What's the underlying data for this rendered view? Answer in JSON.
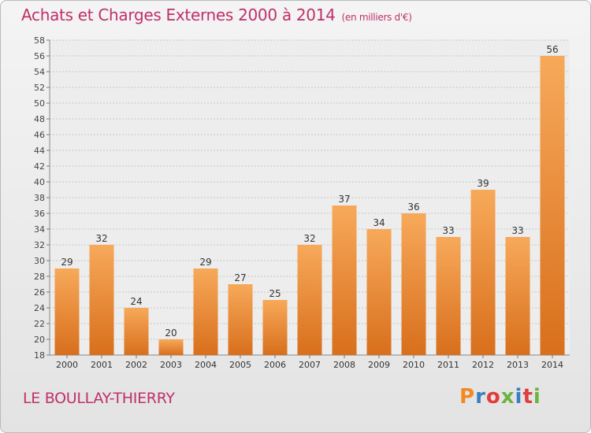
{
  "header": {
    "title": "Achats et Charges Externes 2000 à 2014",
    "unit": "(en milliers d'€)"
  },
  "footer": {
    "commune": "LE BOULLAY-THIERRY",
    "logo_text": "Proxiti"
  },
  "colors": {
    "title": "#c0306a",
    "bar_top": "#f7a95a",
    "bar_bottom": "#d86f1c",
    "logo": [
      "#f08a24",
      "#3a7fc1",
      "#e23c3c",
      "#6cb33f",
      "#3a7fc1",
      "#e23c3c",
      "#6cb33f"
    ]
  },
  "chart_data": {
    "type": "bar",
    "categories": [
      "2000",
      "2001",
      "2002",
      "2003",
      "2004",
      "2005",
      "2006",
      "2007",
      "2008",
      "2009",
      "2010",
      "2011",
      "2012",
      "2013",
      "2014"
    ],
    "values": [
      29,
      32,
      24,
      20,
      29,
      27,
      25,
      32,
      37,
      34,
      36,
      33,
      39,
      33,
      56
    ],
    "ylim": [
      18,
      58
    ],
    "yticks": [
      18,
      20,
      22,
      24,
      26,
      28,
      30,
      32,
      34,
      36,
      38,
      40,
      42,
      44,
      46,
      48,
      50,
      52,
      54,
      56,
      58
    ],
    "grid": true,
    "data_labels": true
  }
}
